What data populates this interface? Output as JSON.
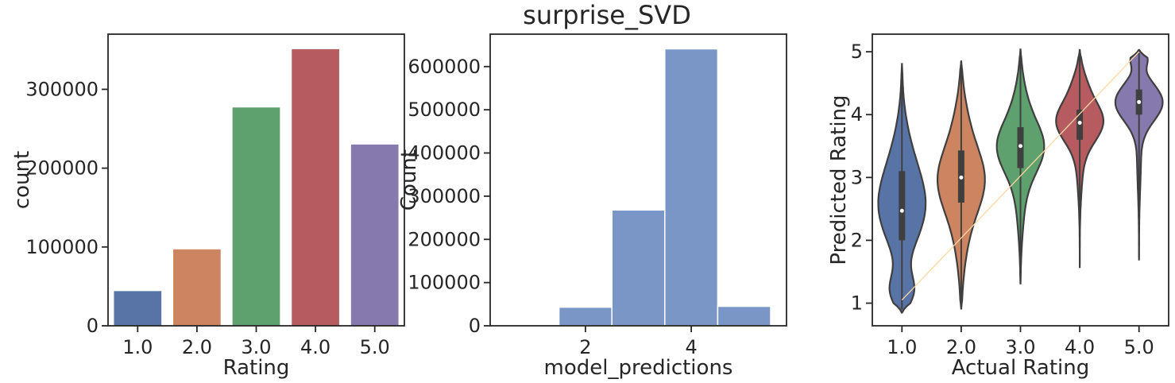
{
  "figure": {
    "title": "surprise_SVD"
  },
  "chart_data": [
    {
      "type": "bar",
      "categories": [
        "1.0",
        "2.0",
        "3.0",
        "4.0",
        "5.0"
      ],
      "values": [
        44000,
        97000,
        277000,
        351000,
        230000
      ],
      "colors": [
        "#5874a6",
        "#cc8560",
        "#5ea06e",
        "#b65c60",
        "#8679ae"
      ],
      "xlabel": "Rating",
      "ylabel": "count",
      "ylim": [
        0,
        370000
      ],
      "yticks": [
        0,
        100000,
        200000,
        300000
      ],
      "ytick_labels": [
        "0",
        "100000",
        "200000",
        "300000"
      ]
    },
    {
      "type": "bar",
      "subtype": "histogram",
      "bins": [
        {
          "x0": 1.5,
          "x1": 2.5,
          "count": 43000
        },
        {
          "x0": 2.5,
          "x1": 3.5,
          "count": 268000
        },
        {
          "x0": 3.5,
          "x1": 4.5,
          "count": 641000
        },
        {
          "x0": 4.5,
          "x1": 5.5,
          "count": 45000
        }
      ],
      "color": "#7a96c6",
      "xlabel": "model_predictions",
      "ylabel": "Count",
      "xlim": [
        0.2,
        5.8
      ],
      "xticks": [
        2,
        4
      ],
      "xtick_labels": [
        "2",
        "4"
      ],
      "ylim": [
        0,
        675000
      ],
      "yticks": [
        0,
        100000,
        200000,
        300000,
        400000,
        500000,
        600000
      ],
      "ytick_labels": [
        "0",
        "100000",
        "200000",
        "300000",
        "400000",
        "500000",
        "600000"
      ]
    },
    {
      "type": "violin",
      "categories": [
        "1.0",
        "2.0",
        "3.0",
        "4.0",
        "5.0"
      ],
      "colors": [
        "#5874a6",
        "#cc8560",
        "#5ea06e",
        "#b65c60",
        "#8679ae"
      ],
      "series": [
        {
          "min": 0.85,
          "max": 4.82,
          "q1": 2.0,
          "median": 2.47,
          "q3": 3.1
        },
        {
          "min": 0.9,
          "max": 4.86,
          "q1": 2.6,
          "median": 3.0,
          "q3": 3.43
        },
        {
          "min": 1.3,
          "max": 5.05,
          "q1": 3.15,
          "median": 3.5,
          "q3": 3.8
        },
        {
          "min": 1.56,
          "max": 5.04,
          "q1": 3.6,
          "median": 3.87,
          "q3": 4.08
        },
        {
          "min": 1.68,
          "max": 5.03,
          "q1": 4.0,
          "median": 4.2,
          "q3": 4.4
        }
      ],
      "reference_line": {
        "from": [
          1.0,
          1.05
        ],
        "to": [
          5.0,
          5.0
        ],
        "color": "#ffd7a3"
      },
      "xlabel": "Actual Rating",
      "ylabel": "Predicted Rating",
      "ylim": [
        0.64,
        5.28
      ],
      "yticks": [
        1,
        2,
        3,
        4,
        5
      ],
      "ytick_labels": [
        "1",
        "2",
        "3",
        "4",
        "5"
      ]
    }
  ]
}
